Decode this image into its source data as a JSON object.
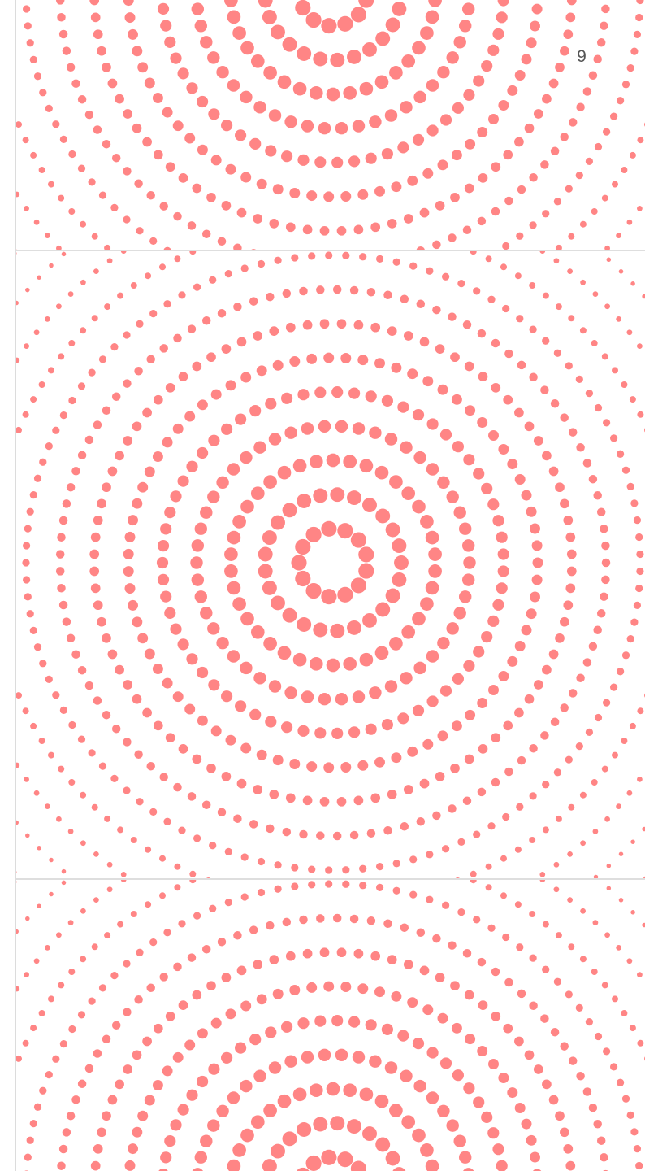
{
  "page": {
    "number_label": "9"
  },
  "cards": [
    {
      "name": "dot-pattern-card-top"
    },
    {
      "name": "dot-pattern-card-middle"
    },
    {
      "name": "dot-pattern-card-bottom"
    }
  ],
  "pattern": {
    "dot_color": "#ff8585",
    "divider_color": "#dedede"
  }
}
